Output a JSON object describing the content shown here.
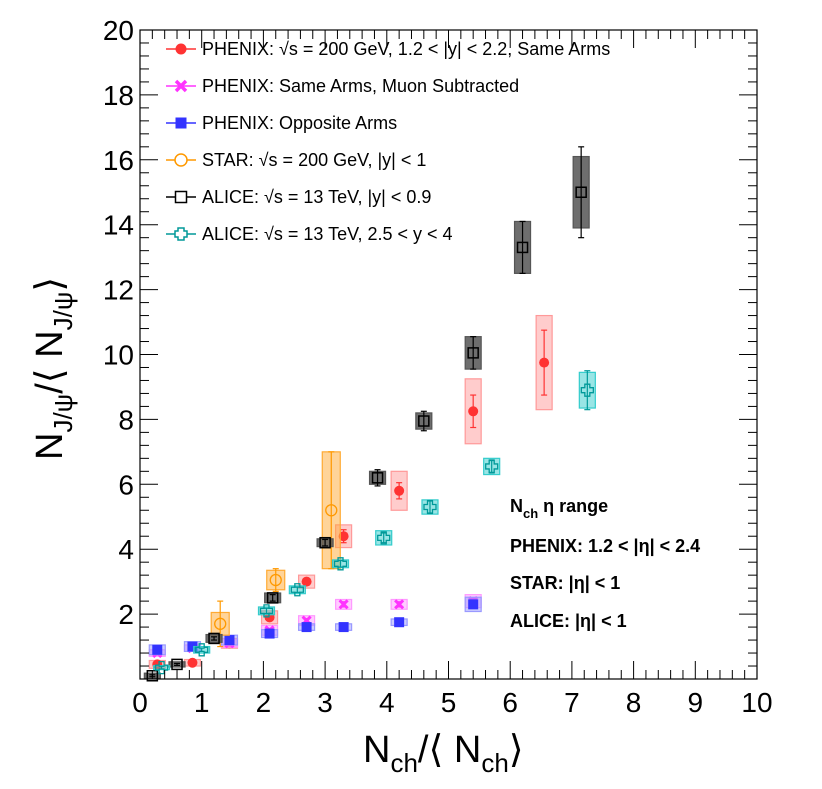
{
  "chart_data": {
    "type": "scatter",
    "title": "",
    "xlim": [
      0,
      10
    ],
    "ylim": [
      0,
      20
    ],
    "xticks": [
      "0",
      "1",
      "2",
      "3",
      "4",
      "5",
      "6",
      "7",
      "8",
      "9",
      "10"
    ],
    "yticks": [
      "2",
      "4",
      "6",
      "8",
      "10",
      "12",
      "14",
      "16",
      "18",
      "20"
    ],
    "xlabel": {
      "main": "N",
      "sub": "ch",
      "mid": "/⟨ N",
      "sub2": "ch",
      "end": "⟩"
    },
    "ylabel": {
      "main": "N",
      "sub": "J/ψ",
      "mid": "/⟨ N",
      "sub2": "J/ψ",
      "end": "⟩"
    },
    "legend": [
      "PHENIX: √s = 200 GeV, 1.2 < |y| < 2.2, Same Arms",
      "PHENIX: Same Arms, Muon Subtracted",
      "PHENIX: Opposite Arms",
      "STAR: √s = 200 GeV, |y| < 1",
      "ALICE: √s = 13 TeV, |y| < 0.9",
      "ALICE: √s = 13 TeV, 2.5 < y < 4"
    ],
    "annotations": {
      "header_main": "N",
      "header_sub": "ch",
      "header_rest": " η range",
      "lines": [
        "PHENIX: 1.2 < |η| < 2.4",
        "STAR: |η| < 1",
        "ALICE: |η| < 1"
      ]
    },
    "series": [
      {
        "name": "PHENIX: Same Arms",
        "marker": "circle-filled",
        "color": "#ff3333",
        "boxcolor": "#ff9999",
        "points": [
          {
            "x": 0.28,
            "y": 0.45,
            "err": 0.08,
            "sys": 0.12
          },
          {
            "x": 0.85,
            "y": 0.5,
            "err": 0.06,
            "sys": 0.1
          },
          {
            "x": 1.45,
            "y": 1.1,
            "err": 0.08,
            "sys": 0.15
          },
          {
            "x": 2.1,
            "y": 1.9,
            "err": 0.1,
            "sys": 0.2
          },
          {
            "x": 2.7,
            "y": 3.0,
            "err": 0.1,
            "sys": 0.2
          },
          {
            "x": 3.3,
            "y": 4.4,
            "err": 0.2,
            "sys": 0.35
          },
          {
            "x": 4.2,
            "y": 5.8,
            "err": 0.25,
            "sys": 0.6
          },
          {
            "x": 5.4,
            "y": 8.25,
            "err": 0.5,
            "sys": 1.0
          },
          {
            "x": 6.55,
            "y": 9.75,
            "err": 1.0,
            "sys": 1.45
          }
        ]
      },
      {
        "name": "PHENIX: Same Arms, Muon Subtracted",
        "marker": "x-filled",
        "color": "#ff33ff",
        "boxcolor": "#ff99ff",
        "points": [
          {
            "x": 0.28,
            "y": 0.8,
            "err": 0.06,
            "sys": 0.1
          },
          {
            "x": 0.85,
            "y": 0.95,
            "err": 0.06,
            "sys": 0.1
          },
          {
            "x": 1.45,
            "y": 1.1,
            "err": 0.06,
            "sys": 0.12
          },
          {
            "x": 2.1,
            "y": 1.5,
            "err": 0.06,
            "sys": 0.15
          },
          {
            "x": 2.7,
            "y": 1.8,
            "err": 0.06,
            "sys": 0.15
          },
          {
            "x": 3.3,
            "y": 2.3,
            "err": 0.08,
            "sys": 0.15
          },
          {
            "x": 4.2,
            "y": 2.3,
            "err": 0.08,
            "sys": 0.15
          },
          {
            "x": 5.4,
            "y": 2.4,
            "err": 0.1,
            "sys": 0.2
          }
        ]
      },
      {
        "name": "PHENIX: Opposite Arms",
        "marker": "square-filled",
        "color": "#3333ff",
        "boxcolor": "#9999ff",
        "points": [
          {
            "x": 0.28,
            "y": 0.9,
            "err": 0.06,
            "sys": 0.15
          },
          {
            "x": 0.85,
            "y": 1.0,
            "err": 0.06,
            "sys": 0.15
          },
          {
            "x": 1.45,
            "y": 1.2,
            "err": 0.06,
            "sys": 0.15
          },
          {
            "x": 2.1,
            "y": 1.4,
            "err": 0.06,
            "sys": 0.12
          },
          {
            "x": 2.7,
            "y": 1.6,
            "err": 0.06,
            "sys": 0.1
          },
          {
            "x": 3.3,
            "y": 1.6,
            "err": 0.06,
            "sys": 0.1
          },
          {
            "x": 4.2,
            "y": 1.75,
            "err": 0.06,
            "sys": 0.1
          },
          {
            "x": 5.4,
            "y": 2.3,
            "err": 0.12,
            "sys": 0.22
          }
        ]
      },
      {
        "name": "STAR",
        "marker": "circle-open",
        "color": "#ff9900",
        "boxcolor": "#ffaa33",
        "points": [
          {
            "x": 1.3,
            "y": 1.7,
            "err": 0.7,
            "sys": 0.35
          },
          {
            "x": 2.2,
            "y": 3.05,
            "err": 0.35,
            "sys": 0.3
          },
          {
            "x": 3.1,
            "y": 5.2,
            "err": 1.8,
            "sys": 1.8
          }
        ]
      },
      {
        "name": "ALICE: |y| < 0.9",
        "marker": "square-open",
        "color": "#000000",
        "boxcolor": "#555555",
        "points": [
          {
            "x": 0.2,
            "y": 0.1,
            "err": 0.03,
            "sys": 0.08
          },
          {
            "x": 0.6,
            "y": 0.45,
            "err": 0.03,
            "sys": 0.08
          },
          {
            "x": 1.2,
            "y": 1.25,
            "err": 0.05,
            "sys": 0.12
          },
          {
            "x": 2.15,
            "y": 2.5,
            "err": 0.1,
            "sys": 0.15
          },
          {
            "x": 3.0,
            "y": 4.2,
            "err": 0.1,
            "sys": 0.12
          },
          {
            "x": 3.85,
            "y": 6.2,
            "err": 0.25,
            "sys": 0.2
          },
          {
            "x": 4.6,
            "y": 7.95,
            "err": 0.3,
            "sys": 0.25
          },
          {
            "x": 5.4,
            "y": 10.05,
            "err": 0.5,
            "sys": 0.5
          },
          {
            "x": 6.2,
            "y": 13.3,
            "err": 0.8,
            "sys": 0.8
          },
          {
            "x": 7.15,
            "y": 15.0,
            "err": 1.4,
            "sys": 1.1
          }
        ]
      },
      {
        "name": "ALICE: 2.5 < y < 4",
        "marker": "cross-open",
        "color": "#009999",
        "boxcolor": "#33cccc",
        "points": [
          {
            "x": 0.35,
            "y": 0.35,
            "err": 0.04,
            "sys": 0.06
          },
          {
            "x": 1.0,
            "y": 0.9,
            "err": 0.05,
            "sys": 0.1
          },
          {
            "x": 2.05,
            "y": 2.1,
            "err": 0.08,
            "sys": 0.12
          },
          {
            "x": 2.55,
            "y": 2.75,
            "err": 0.08,
            "sys": 0.12
          },
          {
            "x": 3.25,
            "y": 3.55,
            "err": 0.1,
            "sys": 0.12
          },
          {
            "x": 3.95,
            "y": 4.35,
            "err": 0.15,
            "sys": 0.22
          },
          {
            "x": 4.7,
            "y": 5.3,
            "err": 0.2,
            "sys": 0.22
          },
          {
            "x": 5.7,
            "y": 6.55,
            "err": 0.2,
            "sys": 0.25
          },
          {
            "x": 7.25,
            "y": 8.9,
            "err": 0.6,
            "sys": 0.55
          }
        ]
      }
    ]
  }
}
